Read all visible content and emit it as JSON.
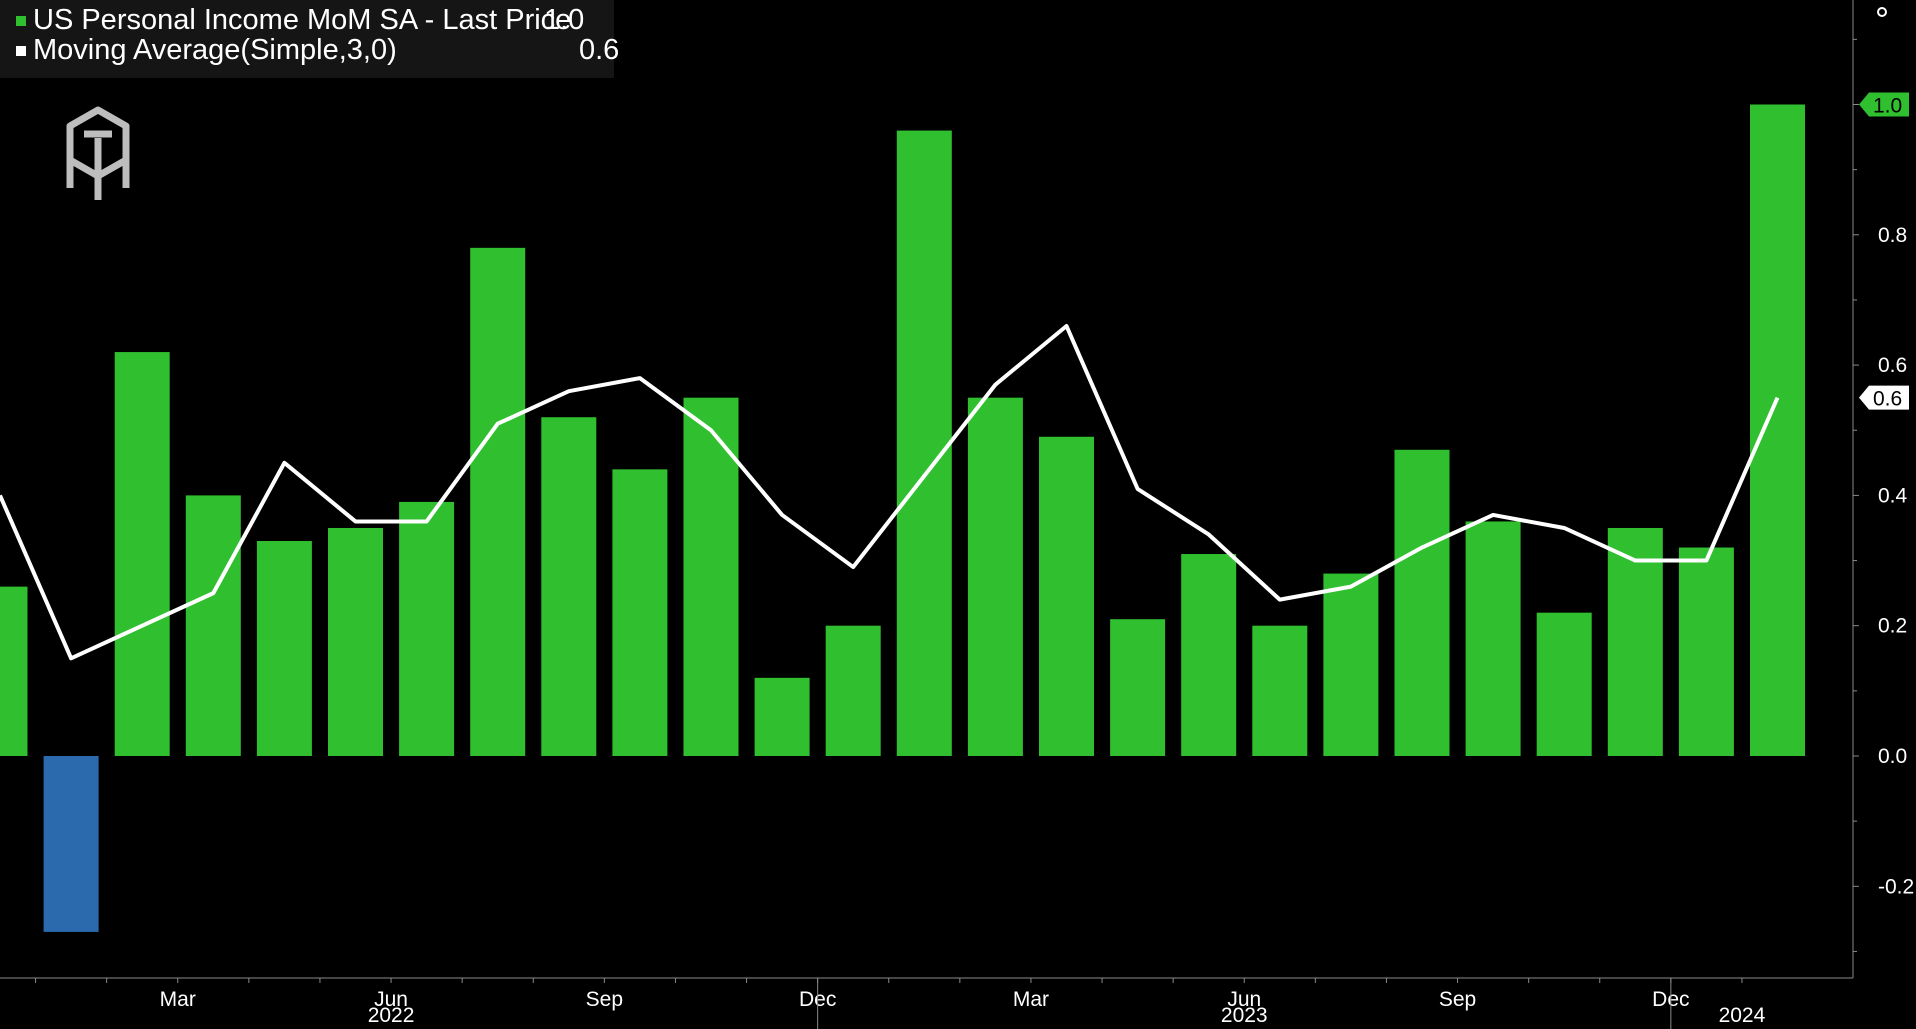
{
  "legend": {
    "series1_label": "US Personal Income MoM SA - Last Price",
    "series1_value": "1.0",
    "series1_color": "#2fbf2f",
    "series2_label": "Moving Average(Simple,3,0)",
    "series2_value": "0.6",
    "series2_color": "#ffffff"
  },
  "logo": {
    "icon": "brand-logo-icon"
  },
  "corner": {
    "icon": "settings-dot-icon"
  },
  "chart_data": {
    "type": "bar",
    "ylim": [
      -0.34,
      1.14
    ],
    "yticks": [
      "1.0",
      "0.8",
      "0.6",
      "0.4",
      "0.2",
      "0.0",
      "-0.2"
    ],
    "ytick_values": [
      1.0,
      0.8,
      0.6,
      0.4,
      0.2,
      0.0,
      -0.2
    ],
    "grid": false,
    "legend_position": "top-left",
    "positive_color": "#2fbf2f",
    "negative_color": "#2a6aad",
    "categories": [
      "Dec 2021",
      "Jan 2022",
      "Feb 2022",
      "Mar 2022",
      "Apr 2022",
      "May 2022",
      "Jun 2022",
      "Jul 2022",
      "Aug 2022",
      "Sep 2022",
      "Oct 2022",
      "Nov 2022",
      "Dec 2022",
      "Jan 2023",
      "Feb 2023",
      "Mar 2023",
      "Apr 2023",
      "May 2023",
      "Jun 2023",
      "Jul 2023",
      "Aug 2023",
      "Sep 2023",
      "Oct 2023",
      "Nov 2023",
      "Dec 2023",
      "Jan 2024"
    ],
    "series": [
      {
        "name": "US Personal Income MoM SA - Last Price",
        "values": [
          0.26,
          -0.27,
          0.62,
          0.4,
          0.33,
          0.35,
          0.39,
          0.78,
          0.52,
          0.44,
          0.55,
          0.12,
          0.2,
          0.96,
          0.55,
          0.49,
          0.21,
          0.31,
          0.2,
          0.28,
          0.47,
          0.36,
          0.22,
          0.35,
          0.32,
          1.0
        ]
      },
      {
        "name": "Moving Average(Simple,3,0)",
        "values": [
          0.4,
          0.15,
          0.2,
          0.25,
          0.45,
          0.36,
          0.36,
          0.51,
          0.56,
          0.58,
          0.5,
          0.37,
          0.29,
          0.43,
          0.57,
          0.66,
          0.41,
          0.34,
          0.24,
          0.26,
          0.32,
          0.37,
          0.35,
          0.3,
          0.3,
          0.55
        ]
      }
    ],
    "last_value_labels": [
      {
        "value": 1.0,
        "text": "1.0",
        "bg": "#2fbf2f",
        "fg": "#000000"
      },
      {
        "value": 0.55,
        "text": "0.6",
        "bg": "#ffffff",
        "fg": "#000000"
      }
    ],
    "xaxis": {
      "months": [
        {
          "label": "Mar",
          "index": 3
        },
        {
          "label": "Jun",
          "index": 6
        },
        {
          "label": "Sep",
          "index": 9
        },
        {
          "label": "Dec",
          "index": 12
        },
        {
          "label": "Mar",
          "index": 15
        },
        {
          "label": "Jun",
          "index": 18
        },
        {
          "label": "Sep",
          "index": 21
        },
        {
          "label": "Dec",
          "index": 24
        }
      ],
      "years": [
        {
          "label": "2022",
          "index": 6
        },
        {
          "label": "2023",
          "index": 18
        },
        {
          "label": "2024",
          "index": 25
        }
      ]
    }
  }
}
